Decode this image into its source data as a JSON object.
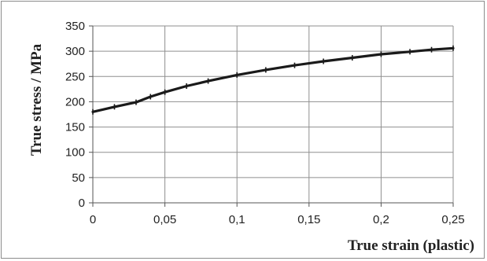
{
  "chart_data": {
    "type": "line",
    "title": "",
    "xlabel": "True strain (plastic)",
    "ylabel": "True stress / MPa",
    "xlim": [
      0,
      0.25
    ],
    "ylim": [
      0,
      350
    ],
    "x_ticks": [
      "0",
      "0,05",
      "0,1",
      "0,15",
      "0,2",
      "0,25"
    ],
    "y_ticks": [
      "0",
      "50",
      "100",
      "150",
      "200",
      "250",
      "300",
      "350"
    ],
    "grid": true,
    "legend": "none",
    "line_color": "#1a1a1a",
    "series": [
      {
        "x": [
          0,
          0.015,
          0.03,
          0.04,
          0.05,
          0.065,
          0.08,
          0.1,
          0.12,
          0.14,
          0.16,
          0.18,
          0.2,
          0.22,
          0.235,
          0.25
        ],
        "y": [
          180,
          190,
          199,
          210,
          219,
          231,
          241,
          253,
          263,
          272,
          280,
          287,
          294,
          299,
          303,
          306
        ]
      }
    ]
  }
}
